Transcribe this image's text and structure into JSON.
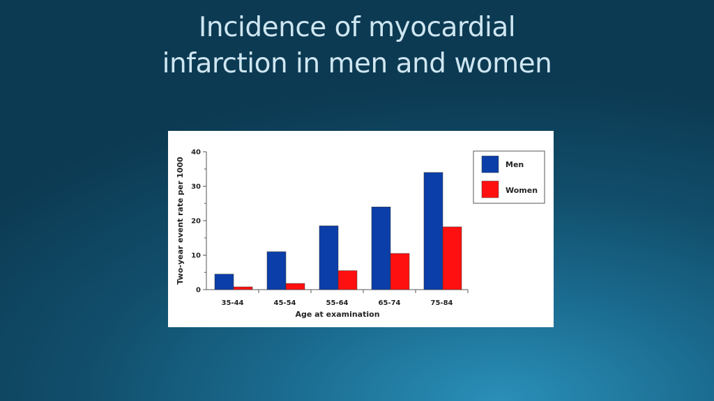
{
  "slide": {
    "title_line1": "Incidence of myocardial",
    "title_line2": "infarction in men and women"
  },
  "chart_data": {
    "type": "bar",
    "categories": [
      "35-44",
      "45-54",
      "55-64",
      "65-74",
      "75-84"
    ],
    "series": [
      {
        "name": "Men",
        "color": "#0b3ea8",
        "values": [
          4.5,
          11,
          18.5,
          24,
          34
        ]
      },
      {
        "name": "Women",
        "color": "#ff1010",
        "values": [
          0.8,
          1.8,
          5.5,
          10.5,
          18.2
        ]
      }
    ],
    "xlabel": "Age at examination",
    "ylabel": "Two-year event rate per 1000",
    "ylim": [
      0,
      40
    ],
    "yticks": [
      "0",
      "10",
      "20",
      "30",
      "40"
    ],
    "legend_position": "top-right",
    "grid": false
  }
}
